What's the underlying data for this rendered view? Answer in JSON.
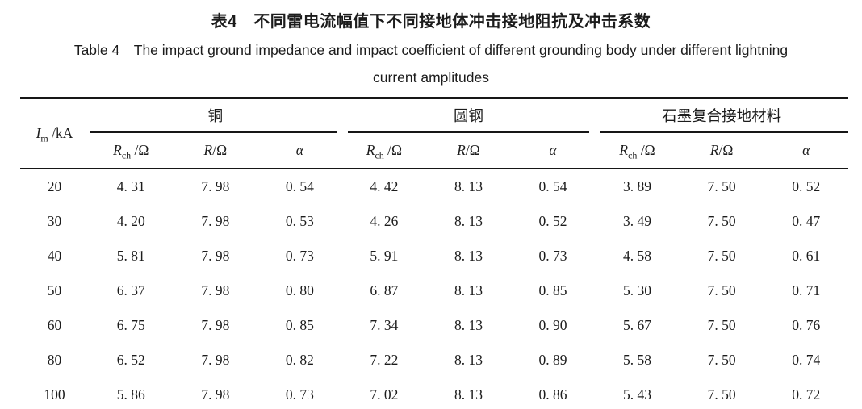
{
  "caption": {
    "title_zh": "表4　不同雷电流幅值下不同接地体冲击接地阻抗及冲击系数",
    "title_en_line1": "Table 4　The impact ground impedance and impact coefficient of different grounding body under different lightning",
    "title_en_line2": "current amplitudes"
  },
  "table": {
    "im_header": {
      "sym": "I",
      "sub": "m",
      "unit": " /kA"
    },
    "groups": {
      "copper": "铜",
      "steel": "圆钢",
      "graphite": "石墨复合接地材料"
    },
    "columns": {
      "rch": {
        "sym": "R",
        "sub": "ch",
        "unit": " /Ω"
      },
      "r": {
        "sym": "R",
        "unit": "/Ω"
      },
      "alpha": "α"
    },
    "rows": [
      {
        "im": "20",
        "values": [
          "4. 31",
          "7. 98",
          "0. 54",
          "4. 42",
          "8. 13",
          "0. 54",
          "3. 89",
          "7. 50",
          "0. 52"
        ]
      },
      {
        "im": "30",
        "values": [
          "4. 20",
          "7. 98",
          "0. 53",
          "4. 26",
          "8. 13",
          "0. 52",
          "3. 49",
          "7. 50",
          "0. 47"
        ]
      },
      {
        "im": "40",
        "values": [
          "5. 81",
          "7. 98",
          "0. 73",
          "5. 91",
          "8. 13",
          "0. 73",
          "4. 58",
          "7. 50",
          "0. 61"
        ]
      },
      {
        "im": "50",
        "values": [
          "6. 37",
          "7. 98",
          "0. 80",
          "6. 87",
          "8. 13",
          "0. 85",
          "5. 30",
          "7. 50",
          "0. 71"
        ]
      },
      {
        "im": "60",
        "values": [
          "6. 75",
          "7. 98",
          "0. 85",
          "7. 34",
          "8. 13",
          "0. 90",
          "5. 67",
          "7. 50",
          "0. 76"
        ]
      },
      {
        "im": "80",
        "values": [
          "6. 52",
          "7. 98",
          "0. 82",
          "7. 22",
          "8. 13",
          "0. 89",
          "5. 58",
          "7. 50",
          "0. 74"
        ]
      },
      {
        "im": "100",
        "values": [
          "5. 86",
          "7. 98",
          "0. 73",
          "7. 02",
          "8. 13",
          "0. 86",
          "5. 43",
          "7. 50",
          "0. 72"
        ]
      }
    ],
    "colors": {
      "text": "#1c1c1c",
      "rule": "#161616",
      "background": "#ffffff"
    }
  }
}
